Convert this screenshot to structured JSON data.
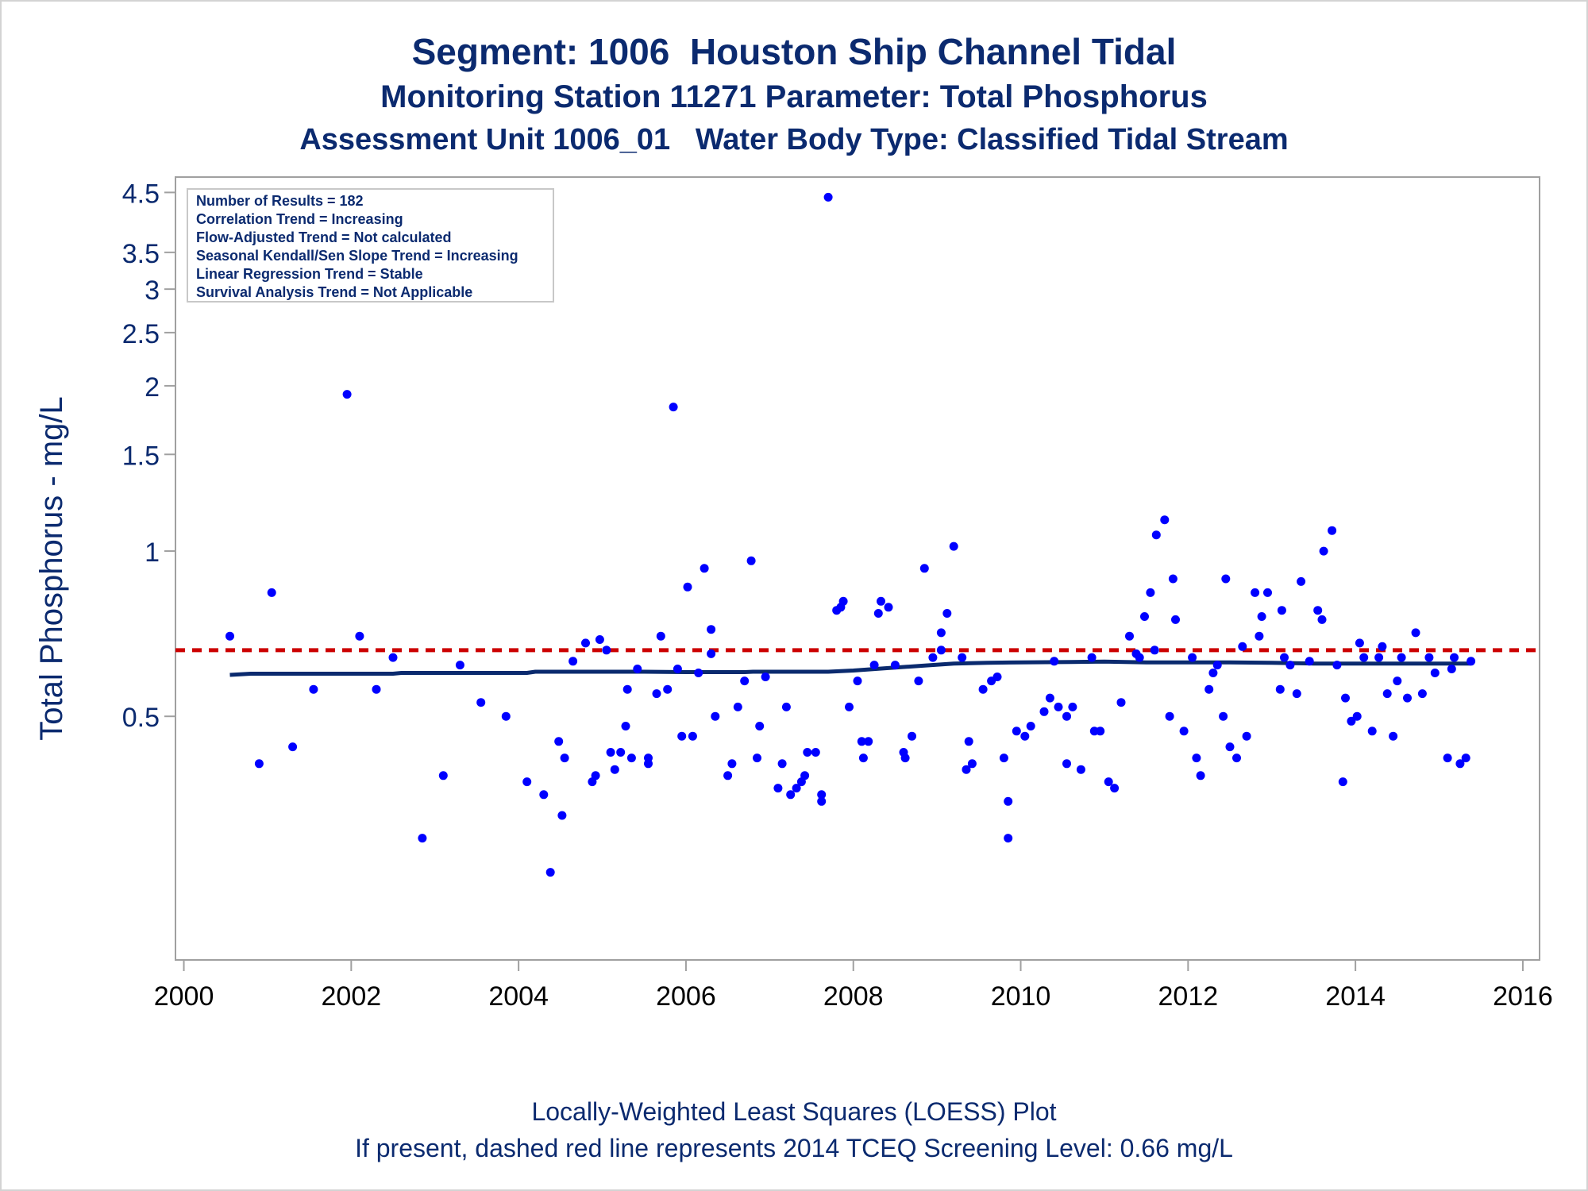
{
  "titles": {
    "line1": "Segment: 1006  Houston Ship Channel Tidal",
    "line2": "Monitoring Station 11271 Parameter: Total Phosphorus",
    "line3": "Assessment Unit 1006_01   Water Body Type: Classified Tidal Stream"
  },
  "footnotes": {
    "line1": "Locally-Weighted Least Squares (LOESS) Plot",
    "line2": "If present, dashed red line represents 2014 TCEQ Screening Level: 0.66 mg/L"
  },
  "stats_box": [
    "Number of Results = 182",
    "Correlation Trend = Increasing",
    "Flow-Adjusted Trend = Not calculated",
    "Seasonal Kendall/Sen Slope Trend = Increasing",
    "Linear Regression Trend = Stable",
    "Survival Analysis Trend = Not Applicable"
  ],
  "colors": {
    "title": "#0b2a6f",
    "points": "#0000ff",
    "loess": "#0a2a6e",
    "screening": "#cc0000",
    "frame": "#a0a0a0"
  },
  "chart_data": {
    "type": "scatter",
    "ylabel": "Total Phosphorus - mg/L",
    "xlabel": "",
    "x_scale": "time (year)",
    "y_scale": "log",
    "xlim": [
      1999.9,
      2016.2
    ],
    "ylim": [
      0.18,
      4.8
    ],
    "x_ticks": [
      "2000",
      "2002",
      "2004",
      "2006",
      "2008",
      "2010",
      "2012",
      "2014",
      "2016"
    ],
    "y_ticks": [
      "0.5",
      "1",
      "1.5",
      "2",
      "2.5",
      "3",
      "3.5",
      "4.5"
    ],
    "screening_level": 0.66,
    "points": [
      [
        2000.55,
        0.7
      ],
      [
        2000.9,
        0.41
      ],
      [
        2001.05,
        0.84
      ],
      [
        2001.3,
        0.44
      ],
      [
        2001.55,
        0.56
      ],
      [
        2001.95,
        1.93
      ],
      [
        2002.1,
        0.7
      ],
      [
        2002.3,
        0.56
      ],
      [
        2002.5,
        0.64
      ],
      [
        2002.85,
        0.3
      ],
      [
        2003.1,
        0.39
      ],
      [
        2003.3,
        0.62
      ],
      [
        2003.55,
        0.53
      ],
      [
        2003.85,
        0.5
      ],
      [
        2004.1,
        0.38
      ],
      [
        2004.3,
        0.36
      ],
      [
        2004.38,
        0.26
      ],
      [
        2004.48,
        0.45
      ],
      [
        2004.52,
        0.33
      ],
      [
        2004.55,
        0.42
      ],
      [
        2004.65,
        0.63
      ],
      [
        2004.8,
        0.68
      ],
      [
        2004.88,
        0.38
      ],
      [
        2004.92,
        0.39
      ],
      [
        2004.97,
        0.69
      ],
      [
        2005.05,
        0.66
      ],
      [
        2005.1,
        0.43
      ],
      [
        2005.15,
        0.4
      ],
      [
        2005.22,
        0.43
      ],
      [
        2005.28,
        0.48
      ],
      [
        2005.3,
        0.56
      ],
      [
        2005.35,
        0.42
      ],
      [
        2005.42,
        0.61
      ],
      [
        2005.55,
        0.42
      ],
      [
        2005.55,
        0.41
      ],
      [
        2005.65,
        0.55
      ],
      [
        2005.7,
        0.7
      ],
      [
        2005.78,
        0.56
      ],
      [
        2005.85,
        1.83
      ],
      [
        2005.9,
        0.61
      ],
      [
        2005.95,
        0.46
      ],
      [
        2006.02,
        0.86
      ],
      [
        2006.08,
        0.46
      ],
      [
        2006.15,
        0.6
      ],
      [
        2006.22,
        0.93
      ],
      [
        2006.3,
        0.65
      ],
      [
        2006.3,
        0.72
      ],
      [
        2006.35,
        0.5
      ],
      [
        2006.5,
        0.39
      ],
      [
        2006.55,
        0.41
      ],
      [
        2006.62,
        0.52
      ],
      [
        2006.7,
        0.58
      ],
      [
        2006.78,
        0.96
      ],
      [
        2006.85,
        0.42
      ],
      [
        2006.88,
        0.48
      ],
      [
        2006.95,
        0.59
      ],
      [
        2007.1,
        0.37
      ],
      [
        2007.15,
        0.41
      ],
      [
        2007.2,
        0.52
      ],
      [
        2007.25,
        0.36
      ],
      [
        2007.32,
        0.37
      ],
      [
        2007.38,
        0.38
      ],
      [
        2007.42,
        0.39
      ],
      [
        2007.45,
        0.43
      ],
      [
        2007.55,
        0.43
      ],
      [
        2007.62,
        0.36
      ],
      [
        2007.62,
        0.35
      ],
      [
        2007.7,
        4.41
      ],
      [
        2007.8,
        0.78
      ],
      [
        2007.85,
        0.79
      ],
      [
        2007.88,
        0.81
      ],
      [
        2007.95,
        0.52
      ],
      [
        2008.05,
        0.58
      ],
      [
        2008.1,
        0.45
      ],
      [
        2008.12,
        0.42
      ],
      [
        2008.18,
        0.45
      ],
      [
        2008.25,
        0.62
      ],
      [
        2008.3,
        0.77
      ],
      [
        2008.33,
        0.81
      ],
      [
        2008.42,
        0.79
      ],
      [
        2008.5,
        0.62
      ],
      [
        2008.6,
        0.43
      ],
      [
        2008.62,
        0.42
      ],
      [
        2008.7,
        0.46
      ],
      [
        2008.78,
        0.58
      ],
      [
        2008.85,
        0.93
      ],
      [
        2008.95,
        0.64
      ],
      [
        2009.05,
        0.66
      ],
      [
        2009.05,
        0.71
      ],
      [
        2009.12,
        0.77
      ],
      [
        2009.2,
        1.02
      ],
      [
        2009.3,
        0.64
      ],
      [
        2009.35,
        0.4
      ],
      [
        2009.38,
        0.45
      ],
      [
        2009.42,
        0.41
      ],
      [
        2009.55,
        0.56
      ],
      [
        2009.65,
        0.58
      ],
      [
        2009.72,
        0.59
      ],
      [
        2009.8,
        0.42
      ],
      [
        2009.85,
        0.35
      ],
      [
        2009.85,
        0.3
      ],
      [
        2009.95,
        0.47
      ],
      [
        2010.05,
        0.46
      ],
      [
        2010.12,
        0.48
      ],
      [
        2010.28,
        0.51
      ],
      [
        2010.35,
        0.54
      ],
      [
        2010.4,
        0.63
      ],
      [
        2010.45,
        0.52
      ],
      [
        2010.55,
        0.41
      ],
      [
        2010.55,
        0.5
      ],
      [
        2010.62,
        0.52
      ],
      [
        2010.72,
        0.4
      ],
      [
        2010.85,
        0.64
      ],
      [
        2010.88,
        0.47
      ],
      [
        2010.95,
        0.47
      ],
      [
        2011.05,
        0.38
      ],
      [
        2011.12,
        0.37
      ],
      [
        2011.2,
        0.53
      ],
      [
        2011.3,
        0.7
      ],
      [
        2011.38,
        0.65
      ],
      [
        2011.42,
        0.64
      ],
      [
        2011.48,
        0.76
      ],
      [
        2011.55,
        0.84
      ],
      [
        2011.6,
        0.66
      ],
      [
        2011.62,
        1.07
      ],
      [
        2011.72,
        1.14
      ],
      [
        2011.78,
        0.5
      ],
      [
        2011.82,
        0.89
      ],
      [
        2011.85,
        0.75
      ],
      [
        2011.95,
        0.47
      ],
      [
        2012.05,
        0.64
      ],
      [
        2012.1,
        0.42
      ],
      [
        2012.15,
        0.39
      ],
      [
        2012.25,
        0.56
      ],
      [
        2012.3,
        0.6
      ],
      [
        2012.35,
        0.62
      ],
      [
        2012.42,
        0.5
      ],
      [
        2012.45,
        0.89
      ],
      [
        2012.5,
        0.44
      ],
      [
        2012.58,
        0.42
      ],
      [
        2012.65,
        0.67
      ],
      [
        2012.7,
        0.46
      ],
      [
        2012.8,
        0.84
      ],
      [
        2012.88,
        0.76
      ],
      [
        2012.85,
        0.7
      ],
      [
        2012.95,
        0.84
      ],
      [
        2013.1,
        0.56
      ],
      [
        2013.12,
        0.78
      ],
      [
        2013.15,
        0.64
      ],
      [
        2013.22,
        0.62
      ],
      [
        2013.3,
        0.55
      ],
      [
        2013.35,
        0.88
      ],
      [
        2013.45,
        0.63
      ],
      [
        2013.55,
        0.78
      ],
      [
        2013.6,
        0.75
      ],
      [
        2013.62,
        1.0
      ],
      [
        2013.72,
        1.09
      ],
      [
        2013.78,
        0.62
      ],
      [
        2013.85,
        0.38
      ],
      [
        2013.88,
        0.54
      ],
      [
        2013.95,
        0.49
      ],
      [
        2014.02,
        0.5
      ],
      [
        2014.05,
        0.68
      ],
      [
        2014.1,
        0.64
      ],
      [
        2014.2,
        0.47
      ],
      [
        2014.28,
        0.64
      ],
      [
        2014.32,
        0.67
      ],
      [
        2014.38,
        0.55
      ],
      [
        2014.45,
        0.46
      ],
      [
        2014.5,
        0.58
      ],
      [
        2014.55,
        0.64
      ],
      [
        2014.62,
        0.54
      ],
      [
        2014.72,
        0.71
      ],
      [
        2014.8,
        0.55
      ],
      [
        2014.88,
        0.64
      ],
      [
        2014.95,
        0.6
      ],
      [
        2015.1,
        0.42
      ],
      [
        2015.15,
        0.61
      ],
      [
        2015.18,
        0.64
      ],
      [
        2015.25,
        0.41
      ],
      [
        2015.32,
        0.42
      ],
      [
        2015.38,
        0.63
      ]
    ],
    "loess": [
      [
        2000.55,
        0.595
      ],
      [
        2000.8,
        0.598
      ],
      [
        2001.5,
        0.598
      ],
      [
        2002.5,
        0.598
      ],
      [
        2002.6,
        0.6
      ],
      [
        2003.5,
        0.6
      ],
      [
        2004.1,
        0.6
      ],
      [
        2004.2,
        0.603
      ],
      [
        2005.5,
        0.603
      ],
      [
        2006.0,
        0.602
      ],
      [
        2006.7,
        0.602
      ],
      [
        2006.8,
        0.603
      ],
      [
        2007.7,
        0.603
      ],
      [
        2008.0,
        0.606
      ],
      [
        2008.4,
        0.612
      ],
      [
        2008.8,
        0.618
      ],
      [
        2009.2,
        0.624
      ],
      [
        2009.6,
        0.626
      ],
      [
        2010.0,
        0.627
      ],
      [
        2010.6,
        0.628
      ],
      [
        2011.0,
        0.629
      ],
      [
        2011.5,
        0.627
      ],
      [
        2012.0,
        0.627
      ],
      [
        2012.5,
        0.627
      ],
      [
        2013.0,
        0.626
      ],
      [
        2013.5,
        0.624
      ],
      [
        2014.0,
        0.624
      ],
      [
        2014.5,
        0.624
      ],
      [
        2015.0,
        0.624
      ],
      [
        2015.38,
        0.624
      ]
    ]
  }
}
